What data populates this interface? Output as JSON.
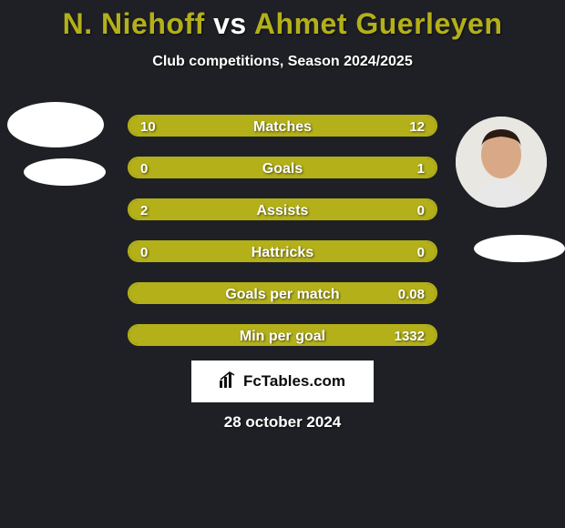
{
  "background_color": "#1f2025",
  "title": {
    "player1": "N. Niehoff",
    "vs": "vs",
    "player2": "Ahmet Guerleyen",
    "player1_color": "#b3b019",
    "player2_color": "#b3b019",
    "vs_color": "#ffffff"
  },
  "subtitle": {
    "text": "Club competitions, Season 2024/2025",
    "color": "#ffffff"
  },
  "avatars": {
    "placeholder_color": "#ffffff",
    "right_has_photo": true,
    "skin_color": "#d9a987",
    "hair_color": "#2a1b12",
    "shirt_color": "#e8e8e8"
  },
  "bars": {
    "border_color": "#b3b019",
    "left_fill": "#b3b019",
    "right_fill": "#b3b019",
    "track_color": "#3a3b3f",
    "label_color": "#ffffff",
    "value_color": "#ffffff",
    "items": [
      {
        "label": "Matches",
        "left_val": "10",
        "right_val": "12",
        "left_pct": 45,
        "right_pct": 55
      },
      {
        "label": "Goals",
        "left_val": "0",
        "right_val": "1",
        "left_pct": 18,
        "right_pct": 82
      },
      {
        "label": "Assists",
        "left_val": "2",
        "right_val": "0",
        "left_pct": 78,
        "right_pct": 22
      },
      {
        "label": "Hattricks",
        "left_val": "0",
        "right_val": "0",
        "left_pct": 50,
        "right_pct": 50
      },
      {
        "label": "Goals per match",
        "left_val": "",
        "right_val": "0.08",
        "left_pct": 35,
        "right_pct": 65
      },
      {
        "label": "Min per goal",
        "left_val": "",
        "right_val": "1332",
        "left_pct": 40,
        "right_pct": 60
      }
    ]
  },
  "brand": {
    "text": "FcTables.com",
    "bg": "#ffffff",
    "color": "#0b0b0b"
  },
  "date": {
    "text": "28 october 2024",
    "color": "#ffffff"
  }
}
